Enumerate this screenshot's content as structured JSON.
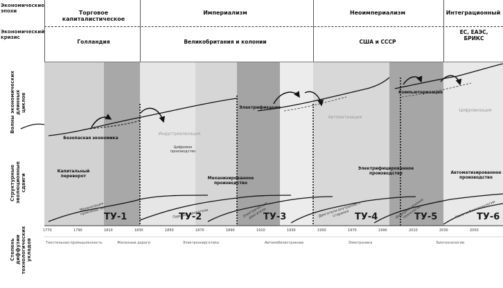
{
  "row_labels": {
    "top": "Экономические\nэпохи",
    "second": "Экономический\nкризис",
    "band1": "Волны экономических\nдлинных\nциклов",
    "band2": "Структурные\nэволюционные\nсдвиги",
    "band3": "Степень\nдиффузии\nтехнологических\nукладов"
  },
  "eras": [
    {
      "label": "Торговое\nкапиталистическое"
    },
    {
      "label": "Империализм"
    },
    {
      "label": "Неоимпериализм"
    },
    {
      "label": "Интеграционный"
    }
  ],
  "systems": [
    {
      "label": "Голландия"
    },
    {
      "label": "Великобритания и колонии"
    },
    {
      "label": "США и СССР"
    },
    {
      "label": "ЕС, ЕАЭС,\nБРИКС"
    }
  ],
  "wave_labels": [
    "Безопасная экономика",
    "Индустриализация",
    "Электрификация",
    "Автоматизация",
    "Компьютеризация",
    "Цифровизация"
  ],
  "struct_labels": [
    "Капитальный\nпереворот",
    "Механизированное\nпроизводство",
    "Электрифицированное\nпроизводство",
    "Автоматизированное\nпроизводство",
    "Цифровое\nпроизводство"
  ],
  "diffusion_labels": [
    "Механизация\nпроизводства",
    "Паровые двигатели",
    "Электрические\nдвигатели",
    "Двигатели внутреннего\nсгорания",
    "Информационные\nтехнологии",
    "Нано- и биотехнологии"
  ],
  "tu": [
    "ТУ-1",
    "ТУ-2",
    "ТУ-3",
    "ТУ-4",
    "ТУ-5",
    "ТУ-6"
  ],
  "ticks": [
    "1770",
    "1790",
    "1810",
    "1830",
    "1850",
    "1870",
    "1890",
    "1910",
    "1930",
    "1950",
    "1970",
    "1990",
    "2010",
    "2030",
    "2050"
  ],
  "footer": [
    "Текстильная промышленность",
    "Железные дороги",
    "Электроэнергетика",
    "Автомобилестроение",
    "Электроника",
    "Биотехнологии"
  ],
  "colors": {
    "band_dark": "#a9a9a9",
    "band_mid": "#c9c9c9",
    "band_light": "#e4e4e4",
    "curve": "#111111"
  }
}
